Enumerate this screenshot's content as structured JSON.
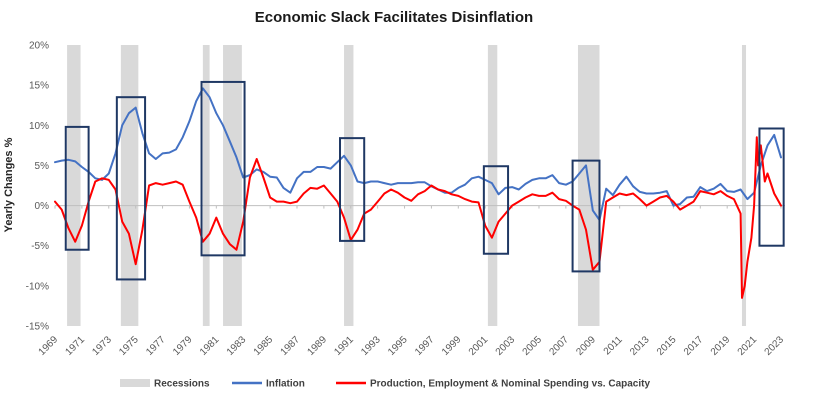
{
  "chart_data": {
    "type": "line",
    "title": "Economic Slack Facilitates Disinflation",
    "ylabel": "Yearly Changes %",
    "xlabel": "",
    "ylim": [
      -15,
      20
    ],
    "xlim": [
      1969.0,
      2023.3
    ],
    "y_ticks": [
      -15,
      -10,
      -5,
      0,
      5,
      10,
      15,
      20
    ],
    "y_tick_labels": [
      "-15%",
      "-10%",
      "-5%",
      "0%",
      "5%",
      "10%",
      "15%",
      "20%"
    ],
    "x_ticks": [
      1969,
      1971,
      1973,
      1975,
      1977,
      1979,
      1981,
      1983,
      1985,
      1987,
      1989,
      1991,
      1993,
      1995,
      1997,
      1999,
      2001,
      2003,
      2005,
      2007,
      2009,
      2011,
      2013,
      2015,
      2017,
      2019,
      2021,
      2023
    ],
    "x_tick_labels": [
      "1969",
      "1971",
      "1973",
      "1975",
      "1977",
      "1979",
      "1981",
      "1983",
      "1985",
      "1987",
      "1989",
      "1991",
      "1993",
      "1995",
      "1997",
      "1999",
      "2001",
      "2003",
      "2005",
      "2007",
      "2009",
      "2011",
      "2013",
      "2015",
      "2017",
      "2019",
      "2021",
      "2023"
    ],
    "recessions": [
      [
        1969.9,
        1970.9
      ],
      [
        1973.9,
        1975.2
      ],
      [
        1980.0,
        1980.5
      ],
      [
        1981.5,
        1982.9
      ],
      [
        1990.5,
        1991.2
      ],
      [
        2001.2,
        2001.9
      ],
      [
        2007.9,
        2009.5
      ],
      [
        2020.1,
        2020.4
      ]
    ],
    "highlight_boxes": [
      {
        "x": [
          1969.8,
          1971.5
        ],
        "y": [
          -5.5,
          9.8
        ]
      },
      {
        "x": [
          1973.6,
          1975.7
        ],
        "y": [
          -9.2,
          13.5
        ]
      },
      {
        "x": [
          1979.9,
          1983.1
        ],
        "y": [
          -6.2,
          15.4
        ]
      },
      {
        "x": [
          1990.2,
          1992.0
        ],
        "y": [
          -4.4,
          8.4
        ]
      },
      {
        "x": [
          2000.9,
          2002.7
        ],
        "y": [
          -6.0,
          4.9
        ]
      },
      {
        "x": [
          2007.5,
          2009.5
        ],
        "y": [
          -8.2,
          5.6
        ]
      },
      {
        "x": [
          2021.4,
          2023.2
        ],
        "y": [
          -5.0,
          9.6
        ]
      }
    ],
    "series": [
      {
        "name": "Inflation",
        "color": "#4472C4",
        "x": [
          1969.0,
          1969.5,
          1970.0,
          1970.5,
          1971.0,
          1971.5,
          1972.0,
          1972.5,
          1973.0,
          1973.5,
          1974.0,
          1974.5,
          1975.0,
          1975.5,
          1976.0,
          1976.5,
          1977.0,
          1977.5,
          1978.0,
          1978.5,
          1979.0,
          1979.5,
          1980.0,
          1980.5,
          1981.0,
          1981.5,
          1982.0,
          1982.5,
          1983.0,
          1983.5,
          1984.0,
          1984.5,
          1985.0,
          1985.5,
          1986.0,
          1986.5,
          1987.0,
          1987.5,
          1988.0,
          1988.5,
          1989.0,
          1989.5,
          1990.0,
          1990.5,
          1991.0,
          1991.5,
          1992.0,
          1992.5,
          1993.0,
          1993.5,
          1994.0,
          1994.5,
          1995.0,
          1995.5,
          1996.0,
          1996.5,
          1997.0,
          1997.5,
          1998.0,
          1998.5,
          1999.0,
          1999.5,
          2000.0,
          2000.5,
          2001.0,
          2001.5,
          2002.0,
          2002.5,
          2003.0,
          2003.5,
          2004.0,
          2004.5,
          2005.0,
          2005.5,
          2006.0,
          2006.5,
          2007.0,
          2007.5,
          2008.0,
          2008.5,
          2009.0,
          2009.5,
          2010.0,
          2010.5,
          2011.0,
          2011.5,
          2012.0,
          2012.5,
          2013.0,
          2013.5,
          2014.0,
          2014.5,
          2015.0,
          2015.5,
          2016.0,
          2016.5,
          2017.0,
          2017.5,
          2018.0,
          2018.5,
          2019.0,
          2019.5,
          2020.0,
          2020.5,
          2021.0,
          2021.5,
          2022.0,
          2022.5,
          2023.0
        ],
        "values": [
          5.4,
          5.6,
          5.7,
          5.5,
          4.8,
          4.2,
          3.4,
          3.2,
          4.0,
          6.5,
          10.0,
          11.5,
          12.2,
          9.0,
          6.5,
          5.8,
          6.5,
          6.6,
          7.0,
          8.5,
          10.5,
          13.0,
          14.6,
          13.5,
          11.5,
          10.0,
          8.0,
          6.0,
          3.5,
          3.8,
          4.5,
          4.2,
          3.6,
          3.5,
          2.2,
          1.6,
          3.4,
          4.2,
          4.2,
          4.8,
          4.8,
          4.6,
          5.4,
          6.2,
          5.0,
          3.0,
          2.8,
          3.0,
          3.0,
          2.8,
          2.6,
          2.8,
          2.8,
          2.8,
          2.9,
          2.9,
          2.4,
          2.0,
          1.6,
          1.6,
          2.2,
          2.6,
          3.4,
          3.6,
          3.2,
          2.8,
          1.4,
          2.2,
          2.3,
          2.0,
          2.7,
          3.2,
          3.4,
          3.4,
          3.8,
          2.8,
          2.6,
          3.0,
          4.0,
          5.0,
          -0.6,
          -1.8,
          2.1,
          1.3,
          2.6,
          3.6,
          2.4,
          1.7,
          1.5,
          1.5,
          1.6,
          1.8,
          0.0,
          0.2,
          1.0,
          1.1,
          2.3,
          1.8,
          2.1,
          2.7,
          1.8,
          1.7,
          2.0,
          0.8,
          1.6,
          5.0,
          7.5,
          8.8,
          6.0
        ]
      },
      {
        "name": "Production, Employment & Nominal Spending vs. Capacity",
        "color": "#FF0000",
        "x": [
          1969.0,
          1969.5,
          1970.0,
          1970.5,
          1971.0,
          1971.5,
          1972.0,
          1972.5,
          1973.0,
          1973.5,
          1974.0,
          1974.5,
          1975.0,
          1975.5,
          1976.0,
          1976.5,
          1977.0,
          1977.5,
          1978.0,
          1978.5,
          1979.0,
          1979.5,
          1980.0,
          1980.5,
          1981.0,
          1981.5,
          1982.0,
          1982.5,
          1983.0,
          1983.5,
          1984.0,
          1984.5,
          1985.0,
          1985.5,
          1986.0,
          1986.5,
          1987.0,
          1987.5,
          1988.0,
          1988.5,
          1989.0,
          1989.5,
          1990.0,
          1990.5,
          1991.0,
          1991.5,
          1992.0,
          1992.5,
          1993.0,
          1993.5,
          1994.0,
          1994.5,
          1995.0,
          1995.5,
          1996.0,
          1996.5,
          1997.0,
          1997.5,
          1998.0,
          1998.5,
          1999.0,
          1999.5,
          2000.0,
          2000.5,
          2001.0,
          2001.5,
          2002.0,
          2002.5,
          2003.0,
          2003.5,
          2004.0,
          2004.5,
          2005.0,
          2005.5,
          2006.0,
          2006.5,
          2007.0,
          2007.5,
          2008.0,
          2008.5,
          2009.0,
          2009.5,
          2010.0,
          2010.5,
          2011.0,
          2011.5,
          2012.0,
          2012.5,
          2013.0,
          2013.5,
          2014.0,
          2014.5,
          2015.0,
          2015.5,
          2016.0,
          2016.5,
          2017.0,
          2017.5,
          2018.0,
          2018.5,
          2019.0,
          2019.5,
          2020.0,
          2020.1,
          2020.3,
          2020.5,
          2020.8,
          2021.0,
          2021.2,
          2021.3,
          2021.5,
          2021.8,
          2022.0,
          2022.5,
          2023.0
        ],
        "values": [
          0.5,
          -0.5,
          -2.8,
          -4.5,
          -2.5,
          0.5,
          3.0,
          3.4,
          3.2,
          2.0,
          -2.0,
          -3.5,
          -7.3,
          -3.0,
          2.5,
          2.8,
          2.6,
          2.8,
          3.0,
          2.6,
          0.5,
          -1.5,
          -4.5,
          -3.5,
          -1.5,
          -3.5,
          -4.8,
          -5.5,
          -2.0,
          3.5,
          5.8,
          3.5,
          1.0,
          0.5,
          0.5,
          0.3,
          0.5,
          1.5,
          2.2,
          2.1,
          2.5,
          1.5,
          0.5,
          -1.5,
          -4.3,
          -3.0,
          -1.0,
          -0.5,
          0.5,
          1.5,
          2.0,
          1.6,
          1.0,
          0.6,
          1.4,
          1.8,
          2.5,
          2.0,
          1.8,
          1.4,
          1.2,
          0.8,
          0.5,
          0.4,
          -2.5,
          -4.0,
          -2.0,
          -1.0,
          0.0,
          0.5,
          1.0,
          1.4,
          1.2,
          1.2,
          1.6,
          0.8,
          0.6,
          0.0,
          -0.5,
          -3.0,
          -8.0,
          -7.0,
          0.5,
          1.0,
          1.5,
          1.3,
          1.5,
          0.8,
          0.0,
          0.5,
          1.0,
          1.2,
          0.5,
          -0.5,
          0.0,
          0.5,
          1.8,
          1.6,
          1.4,
          1.8,
          1.2,
          0.8,
          -1.0,
          -11.5,
          -10.0,
          -7.0,
          -4.0,
          0.0,
          8.5,
          5.0,
          7.5,
          3.0,
          4.0,
          1.5,
          0.0
        ]
      }
    ],
    "legend": [
      {
        "label": "Recessions",
        "kind": "band",
        "color": "#D9D9D9"
      },
      {
        "label": "Inflation",
        "kind": "line",
        "color": "#4472C4"
      },
      {
        "label": "Production, Employment & Nominal Spending vs. Capacity",
        "kind": "line",
        "color": "#FF0000"
      }
    ],
    "legend_position": "bottom",
    "grid": false
  }
}
